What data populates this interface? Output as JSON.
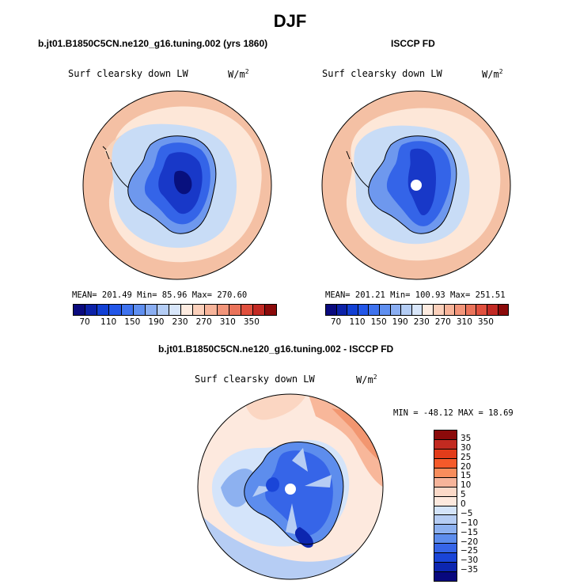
{
  "title": "DJF",
  "panel_left": {
    "subtitle": "b.jt01.B1850C5CN.ne120_g16.tuning.002 (yrs 1860)",
    "variable": "Surf clearsky down LW",
    "units": "W/m",
    "units_exp": "2",
    "stats": "MEAN= 201.49  Min=  85.96  Max= 270.60"
  },
  "panel_right": {
    "subtitle": "ISCCP FD",
    "variable": "Surf clearsky down LW",
    "units": "W/m",
    "units_exp": "2",
    "stats": "MEAN= 201.21  Min= 100.93  Max= 251.51"
  },
  "panel_diff": {
    "subtitle": "b.jt01.B1850C5CN.ne120_g16.tuning.002 - ISCCP FD",
    "variable": "Surf clearsky down LW",
    "units": "W/m",
    "units_exp": "2",
    "stats": "MIN = -48.12 MAX =  18.69"
  },
  "colorbar_abs": {
    "labels": [
      "70",
      "110",
      "150",
      "190",
      "230",
      "270",
      "310",
      "350"
    ],
    "colors": [
      "#0a0a7e",
      "#0c22a8",
      "#1240d4",
      "#2256e8",
      "#3e72ee",
      "#5f8ff0",
      "#8aaef2",
      "#b4cdf5",
      "#d8e6fa",
      "#fdebe0",
      "#fbd0bb",
      "#f7b49a",
      "#f2957a",
      "#ea735a",
      "#e0503e",
      "#c22a24",
      "#8b0a0a"
    ]
  },
  "colorbar_diff": {
    "labels": [
      "35",
      "30",
      "25",
      "20",
      "15",
      "10",
      "5",
      "0",
      "−5",
      "−10",
      "−15",
      "−20",
      "−25",
      "−30",
      "−35"
    ],
    "colors": [
      "#8b0a0a",
      "#c22a20",
      "#e23c1a",
      "#f55a2a",
      "#f88d5c",
      "#f6b49a",
      "#fbd9c8",
      "#fde9de",
      "#d4e4fa",
      "#b6cdf4",
      "#8db1f0",
      "#5d8ded",
      "#3665e8",
      "#1a45d8",
      "#0c26b0",
      "#08087e"
    ]
  },
  "map_colors": {
    "outer_orange": "#f4c0a4",
    "pale_peach": "#fde7d8",
    "light_blue": "#c8dcf6",
    "mid_blue": "#6e98ee",
    "blue": "#3464e8",
    "deep_blue": "#1838c8",
    "navy": "#08107e"
  }
}
